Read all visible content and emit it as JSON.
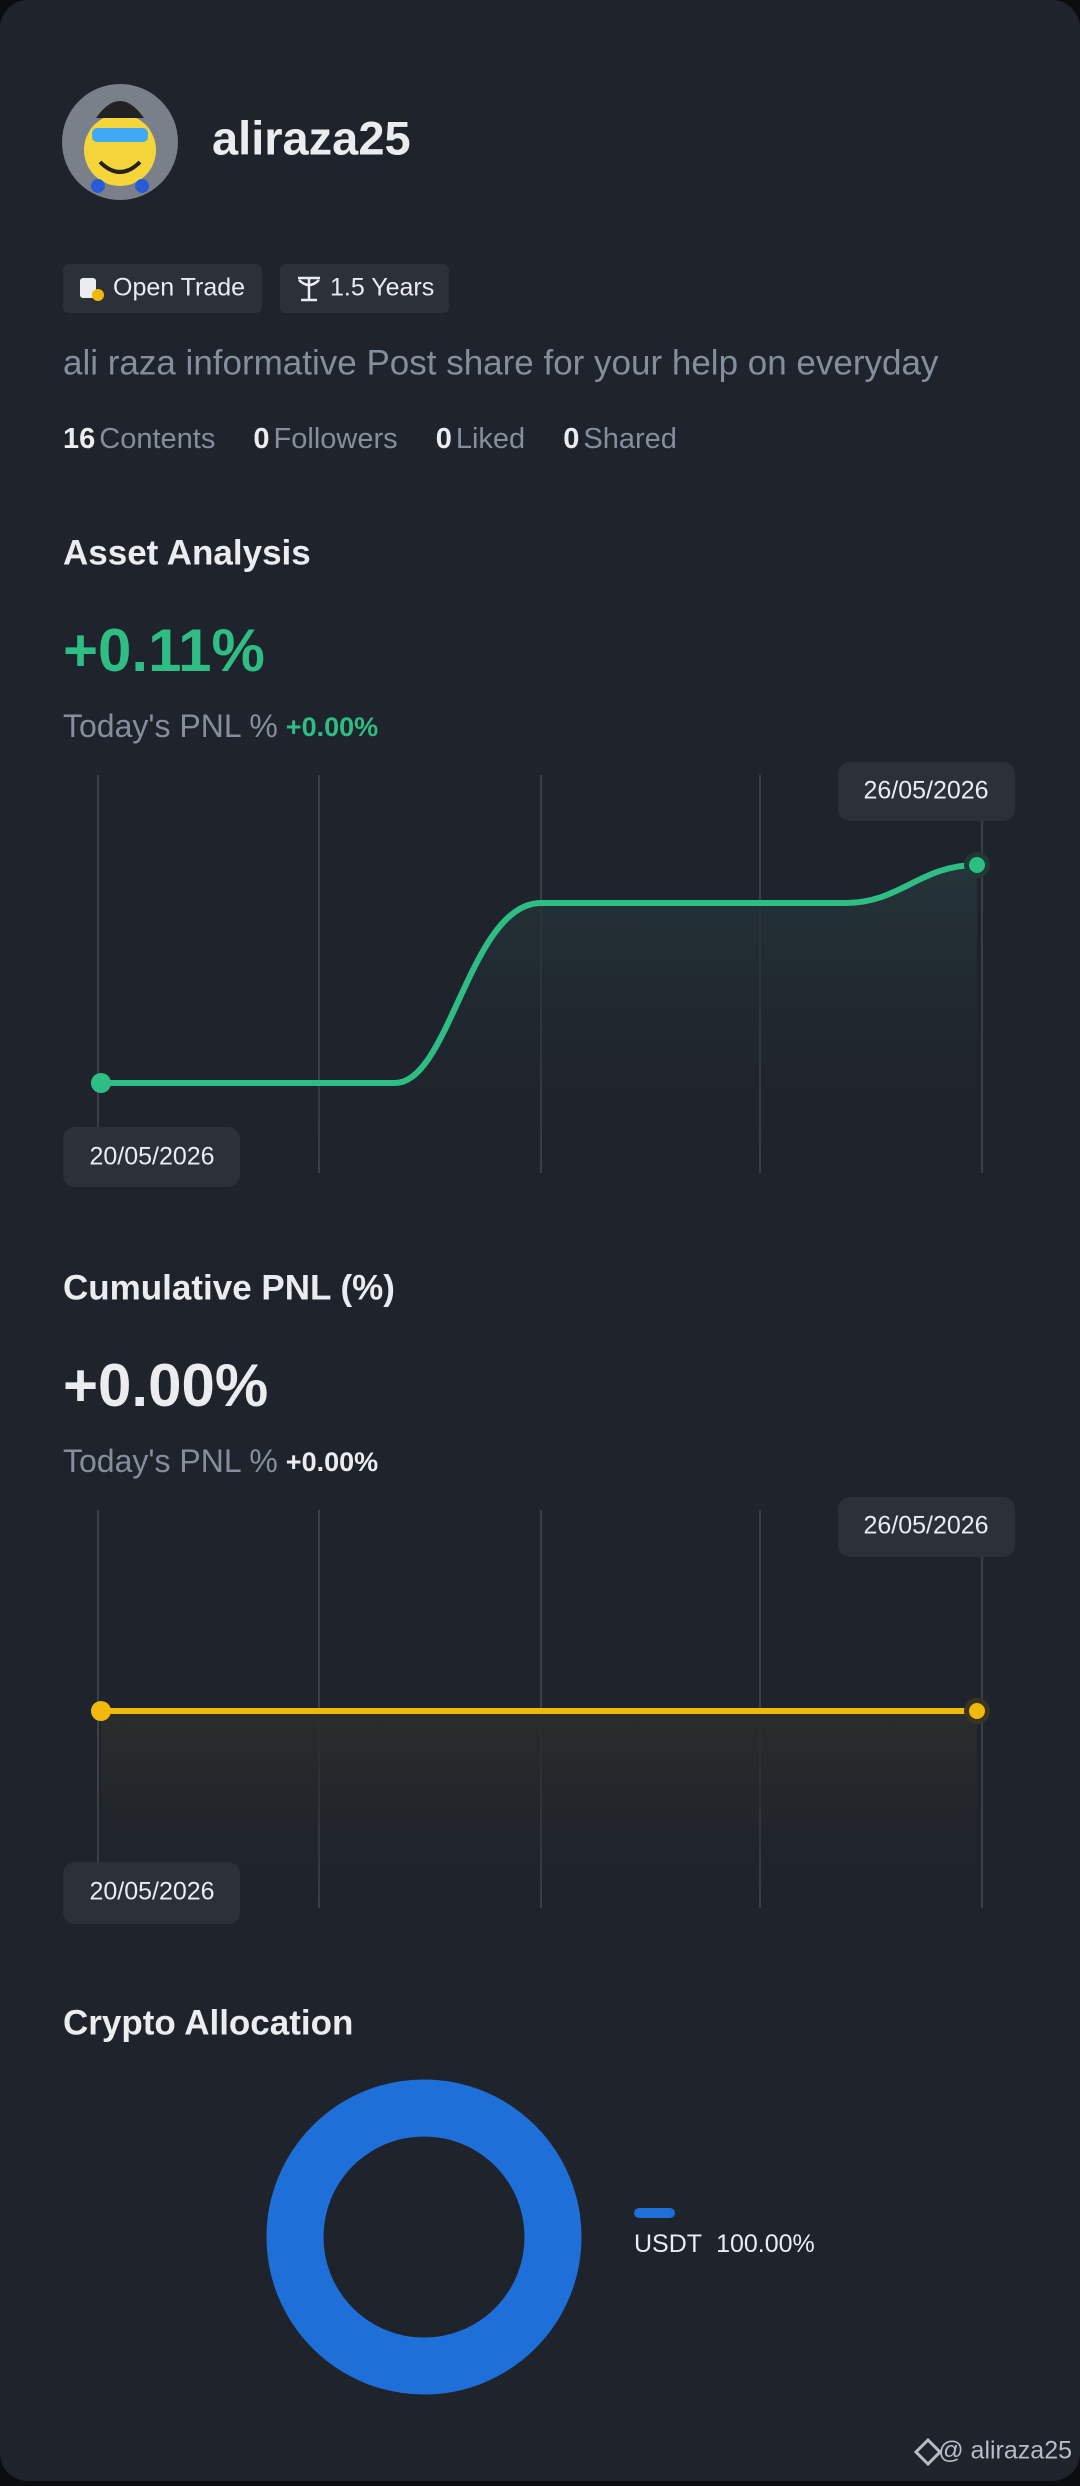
{
  "profile": {
    "username": "aliraza25",
    "badges": [
      "Open Trade",
      "1.5 Years"
    ],
    "bio": "ali raza informative Post share for your help on everyday",
    "stats": [
      {
        "value": 16,
        "label": "Contents"
      },
      {
        "value": 0,
        "label": "Followers"
      },
      {
        "value": 0,
        "label": "Liked"
      },
      {
        "value": 0,
        "label": "Shared"
      }
    ]
  },
  "asset_analysis": {
    "title": "Asset Analysis",
    "value": "+0.11%",
    "pnl_label": "Today's PNL %",
    "pnl_value": "+0.00%",
    "start_date": "20/05/2026",
    "end_date": "26/05/2026"
  },
  "cumulative_pnl": {
    "title": "Cumulative PNL (%)",
    "value": "+0.00%",
    "pnl_label": "Today's PNL %",
    "pnl_value": "+0.00%",
    "start_date": "20/05/2026",
    "end_date": "26/05/2026"
  },
  "allocation": {
    "title": "Crypto Allocation",
    "items": [
      {
        "name": "USDT",
        "value": 100,
        "label": "100.00%",
        "color": "#1f6fd9"
      }
    ]
  },
  "watermark": "@ aliraza25"
}
